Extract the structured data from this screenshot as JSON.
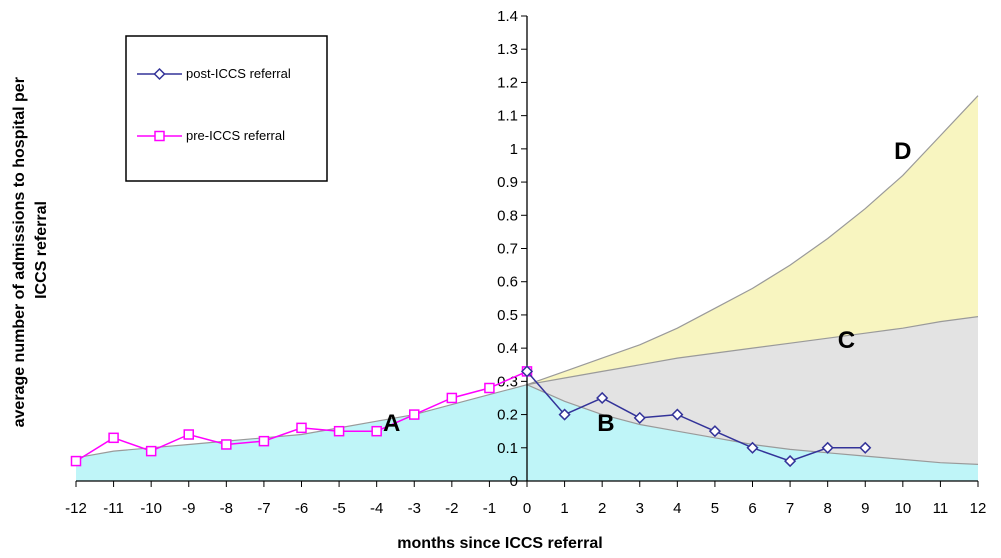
{
  "chart_data": {
    "type": "line",
    "xlabel": "months since ICCS referral",
    "ylabel": "average number of admissions to hospital per ICCS referral",
    "xlim": [
      -12,
      12
    ],
    "ylim": [
      0,
      1.4
    ],
    "x_ticks": [
      -12,
      -11,
      -10,
      -9,
      -8,
      -7,
      -6,
      -5,
      -4,
      -3,
      -2,
      -1,
      0,
      1,
      2,
      3,
      4,
      5,
      6,
      7,
      8,
      9,
      10,
      11,
      12
    ],
    "y_ticks": [
      "0",
      "0.1",
      "0.2",
      "0.3",
      "0.4",
      "0.5",
      "0.6",
      "0.7",
      "0.8",
      "0.9",
      "1",
      "1.1",
      "1.2",
      "1.3",
      "1.4"
    ],
    "legend_position": "top-left",
    "series": [
      {
        "name": "post-ICCS referral",
        "color": "#333399",
        "marker": "diamond",
        "x": [
          0,
          1,
          2,
          3,
          4,
          5,
          6,
          7,
          8,
          9
        ],
        "values": [
          0.33,
          0.2,
          0.25,
          0.19,
          0.2,
          0.15,
          0.1,
          0.06,
          0.1,
          0.1
        ]
      },
      {
        "name": "pre-ICCS referral",
        "color": "#ff00ff",
        "marker": "square",
        "x": [
          -12,
          -11,
          -10,
          -9,
          -8,
          -7,
          -6,
          -5,
          -4,
          -3,
          -2,
          -1,
          0
        ],
        "values": [
          0.06,
          0.13,
          0.09,
          0.14,
          0.11,
          0.12,
          0.16,
          0.15,
          0.15,
          0.2,
          0.25,
          0.28,
          0.33
        ]
      }
    ],
    "curves": [
      {
        "id": "baseline-trend",
        "x": [
          -12,
          -11,
          -10,
          -9,
          -8,
          -7,
          -6,
          -5,
          -4,
          -3,
          -2,
          -1,
          0
        ],
        "values": [
          0.07,
          0.09,
          0.1,
          0.11,
          0.12,
          0.13,
          0.14,
          0.16,
          0.18,
          0.2,
          0.23,
          0.26,
          0.29
        ]
      },
      {
        "id": "lower-decay",
        "x": [
          0,
          1,
          2,
          3,
          4,
          5,
          6,
          7,
          8,
          9,
          10,
          11,
          12
        ],
        "values": [
          0.29,
          0.24,
          0.2,
          0.17,
          0.15,
          0.13,
          0.11,
          0.095,
          0.085,
          0.075,
          0.065,
          0.055,
          0.05
        ]
      },
      {
        "id": "middle-trend",
        "x": [
          0,
          1,
          2,
          3,
          4,
          5,
          6,
          7,
          8,
          9,
          10,
          11,
          12
        ],
        "values": [
          0.29,
          0.31,
          0.33,
          0.35,
          0.37,
          0.385,
          0.4,
          0.415,
          0.43,
          0.445,
          0.46,
          0.48,
          0.495
        ]
      },
      {
        "id": "upper-growth",
        "x": [
          0,
          1,
          2,
          3,
          4,
          5,
          6,
          7,
          8,
          9,
          10,
          11,
          12
        ],
        "values": [
          0.29,
          0.33,
          0.37,
          0.41,
          0.46,
          0.52,
          0.58,
          0.65,
          0.73,
          0.82,
          0.92,
          1.04,
          1.16
        ]
      }
    ],
    "regions": [
      {
        "label": "A",
        "color": "#bff5f8",
        "x": -3.6,
        "y": 0.15
      },
      {
        "label": "B",
        "color": "#bff5f8",
        "x": 2.1,
        "y": 0.15
      },
      {
        "label": "C",
        "color": "#e3e3e3",
        "x": 8.5,
        "y": 0.4
      },
      {
        "label": "D",
        "color": "#f8f5c0",
        "x": 10.0,
        "y": 0.97
      }
    ]
  }
}
